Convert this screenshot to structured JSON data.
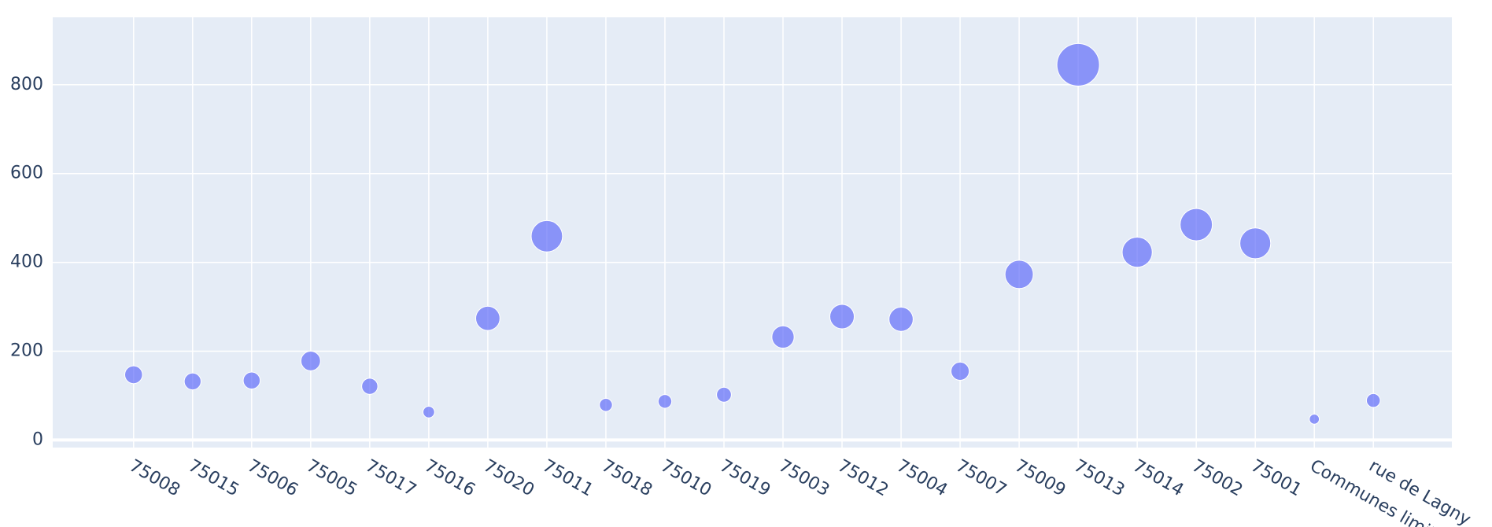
{
  "chart_data": {
    "type": "scatter",
    "categories": [
      "75008",
      "75015",
      "75006",
      "75005",
      "75017",
      "75016",
      "75020",
      "75011",
      "75018",
      "75010",
      "75019",
      "75003",
      "75012",
      "75004",
      "75007",
      "75009",
      "75013",
      "75014",
      "75002",
      "75001",
      "Communes limit",
      "rue de Lagny"
    ],
    "values": [
      147,
      132,
      134,
      178,
      121,
      63,
      274,
      459,
      79,
      87,
      102,
      232,
      278,
      272,
      155,
      373,
      845,
      423,
      485,
      443,
      47,
      89
    ],
    "color": "#636efa",
    "ylim": [
      -17,
      952
    ],
    "yticks": [
      0,
      200,
      400,
      600,
      800
    ],
    "grid": true
  }
}
